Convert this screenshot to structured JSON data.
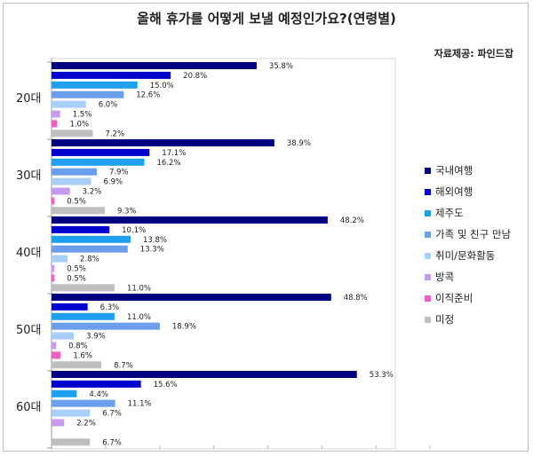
{
  "chart_data": {
    "type": "bar",
    "orientation": "horizontal",
    "title": "올해 휴가를 어떻게 보낼 예정인가요?(연령별)",
    "source": "자료제공: 파인드잡",
    "categories": [
      "20대",
      "30대",
      "40대",
      "50대",
      "60대"
    ],
    "value_suffix": "%",
    "xlim": [
      0,
      60
    ],
    "grid": false,
    "legend_position": "right",
    "series": [
      {
        "name": "국내여행",
        "color": "#000080",
        "values": [
          35.8,
          38.9,
          48.2,
          48.8,
          53.3
        ]
      },
      {
        "name": "해외여행",
        "color": "#0000CC",
        "values": [
          20.8,
          17.1,
          10.1,
          6.3,
          15.6
        ]
      },
      {
        "name": "제주도",
        "color": "#1E9FF0",
        "values": [
          15.0,
          16.2,
          13.8,
          11.0,
          4.4
        ]
      },
      {
        "name": "가족 및 친구 만남",
        "color": "#6D9EEB",
        "values": [
          12.6,
          7.9,
          13.3,
          18.9,
          11.1
        ]
      },
      {
        "name": "취미/문화활동",
        "color": "#A8CFF5",
        "values": [
          6.0,
          6.9,
          2.8,
          3.9,
          6.7
        ]
      },
      {
        "name": "방콕",
        "color": "#C89BF0",
        "values": [
          1.5,
          3.2,
          0.5,
          0.8,
          2.2
        ]
      },
      {
        "name": "이직준비",
        "color": "#F060C0",
        "values": [
          1.0,
          0.5,
          0.5,
          1.6,
          null
        ]
      },
      {
        "name": "미정",
        "color": "#BFBFBF",
        "values": [
          7.2,
          9.3,
          11.0,
          8.7,
          6.7
        ]
      }
    ]
  }
}
